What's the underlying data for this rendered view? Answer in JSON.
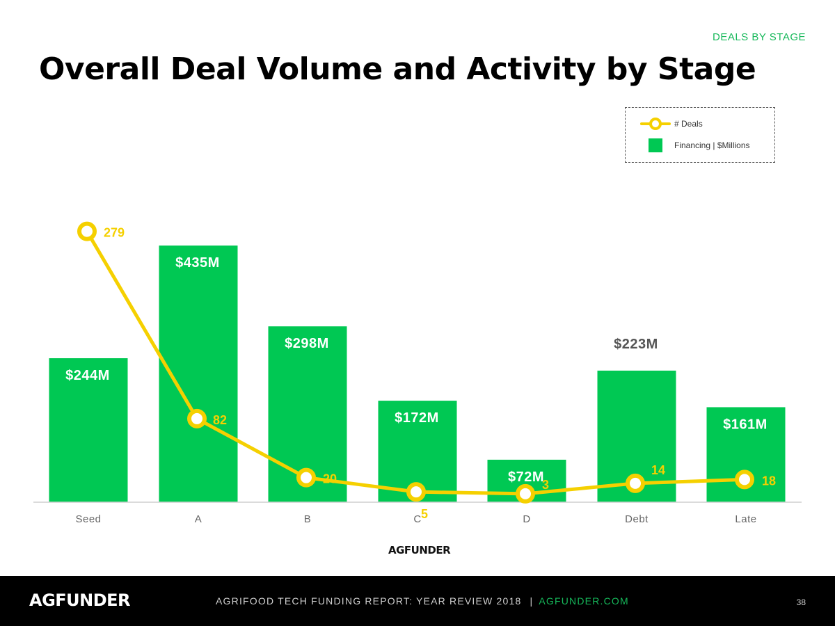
{
  "header": {
    "section_tag": "DEALS BY STAGE",
    "title": "Overall Deal Volume and Activity by Stage"
  },
  "legend": {
    "line_label": "# Deals",
    "bar_label": "Financing | $Millions"
  },
  "colors": {
    "bar": "#00c853",
    "line": "#f5d000",
    "axis": "#cfcfcf"
  },
  "chart_data": {
    "type": "bar",
    "categories": [
      "Seed",
      "A",
      "B",
      "C",
      "D",
      "Debt",
      "Late"
    ],
    "series": [
      {
        "name": "Financing | $Millions",
        "type": "bar",
        "values": [
          244,
          435,
          298,
          172,
          72,
          223,
          161
        ],
        "labels": [
          "$244M",
          "$435M",
          "$298M",
          "$172M",
          "$72M",
          "$223M",
          "$161M"
        ]
      },
      {
        "name": "# Deals",
        "type": "line",
        "values": [
          279,
          82,
          20,
          5,
          3,
          14,
          18
        ],
        "labels": [
          "279",
          "82",
          "20",
          "5",
          "3",
          "14",
          "18"
        ]
      }
    ],
    "title": "Overall Deal Volume and Activity by Stage",
    "legend_position": "top-right",
    "grid": false
  },
  "watermark": {
    "brand": "AGFUNDER"
  },
  "footer": {
    "logo": "AGFUNDER",
    "report": "AGRIFOOD TECH FUNDING REPORT: YEAR REVIEW 2018",
    "separator": "|",
    "site": "AGFUNDER.COM",
    "page": "38"
  }
}
